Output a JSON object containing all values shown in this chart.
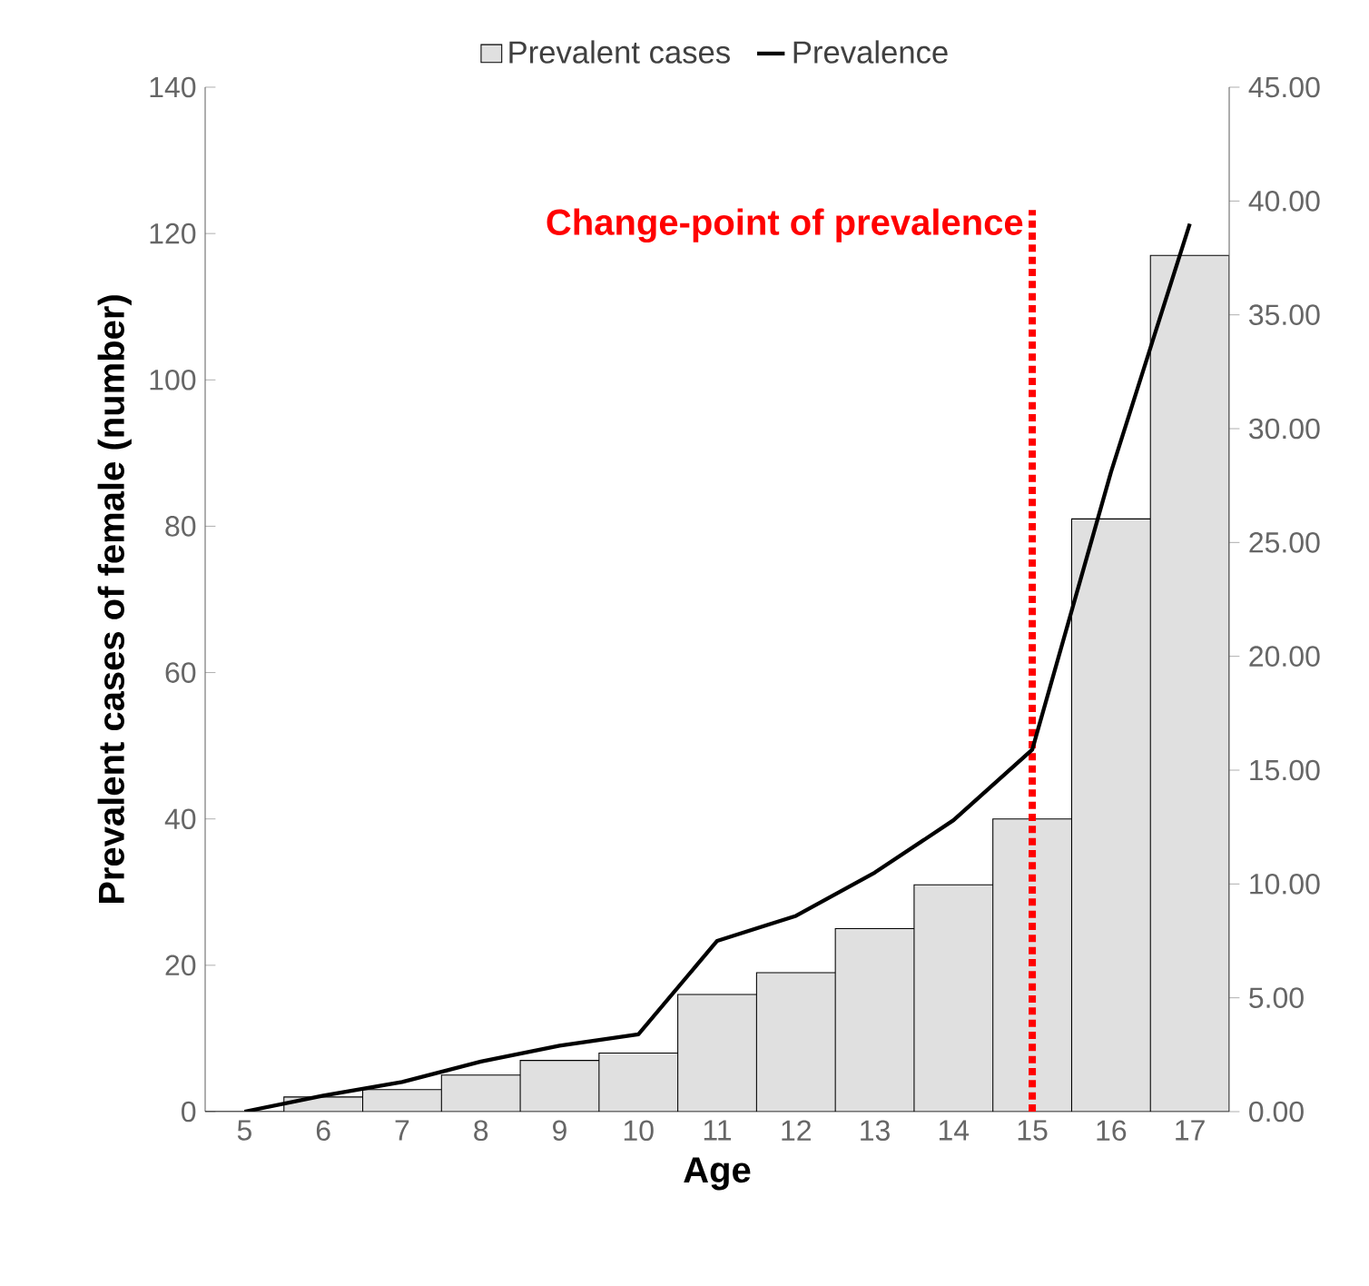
{
  "chart_data": {
    "type": "bar",
    "xlabel": "Age",
    "ylabel": "Prevalent cases of female (number)",
    "categories": [
      "5",
      "6",
      "7",
      "8",
      "9",
      "10",
      "11",
      "12",
      "13",
      "14",
      "15",
      "16",
      "17"
    ],
    "series": [
      {
        "name": "Prevalent cases",
        "color": "#e0e0e0",
        "values": [
          0,
          2,
          3,
          5,
          7,
          8,
          16,
          19,
          25,
          31,
          40,
          81,
          117
        ]
      },
      {
        "name": "Prevalence",
        "type": "line",
        "axis": "y2",
        "color": "#000000",
        "line_style": "solid",
        "values": [
          0,
          0.7,
          1.3,
          2.2,
          2.9,
          3.4,
          7.5,
          8.6,
          10.5,
          12.8,
          15.9,
          28.1,
          39.0
        ]
      }
    ],
    "ylim": [
      0,
      140
    ],
    "yticks": [
      0,
      20,
      40,
      60,
      80,
      100,
      120,
      140
    ],
    "y2lim": [
      0,
      45
    ],
    "y2ticks": [
      {
        "value": 0,
        "label": "0.00"
      },
      {
        "value": 5,
        "label": "5.00"
      },
      {
        "value": 10,
        "label": "10.00"
      },
      {
        "value": 15,
        "label": "15.00"
      },
      {
        "value": 20,
        "label": "20.00"
      },
      {
        "value": 25,
        "label": "25.00"
      },
      {
        "value": 30,
        "label": "30.00"
      },
      {
        "value": 35,
        "label": "35.00"
      },
      {
        "value": 40,
        "label": "40.00"
      },
      {
        "value": 45,
        "label": "45.00"
      }
    ],
    "ref_lines": [
      {
        "axis": "x",
        "value": "15",
        "label": "Change-point of prevalence",
        "color": "#ff0000",
        "line_style": "dotted"
      }
    ],
    "legend": "top",
    "grid": false
  }
}
